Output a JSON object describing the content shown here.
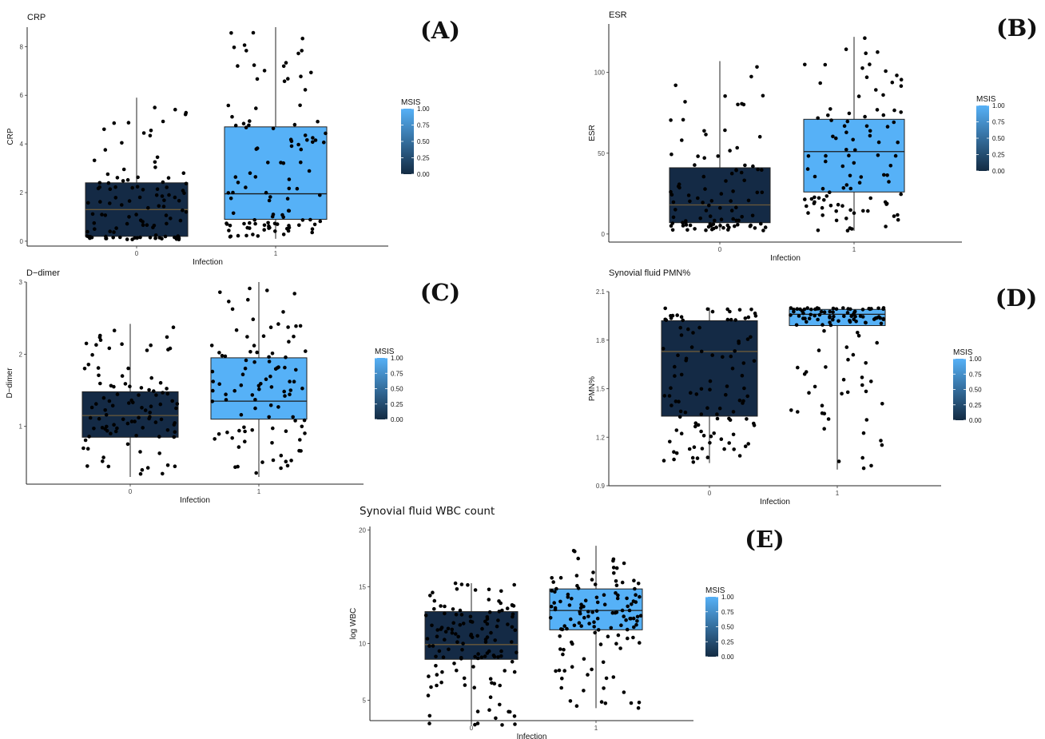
{
  "figure": {
    "legend_title": "MSIS",
    "legend_ticks": [
      "1.00",
      "0.75",
      "0.50",
      "0.25",
      "0.00"
    ],
    "colors": {
      "group0_fill": "#142a45",
      "group1_fill": "#56b1f7",
      "point": "#000000",
      "median0": "#6b5a3a",
      "median1": "#1a1a1a"
    }
  },
  "chart_data": [
    {
      "id": "A",
      "panel_label": "(A)",
      "type": "box",
      "title": "CRP",
      "ylabel": "CRP",
      "xlabel": "Infection",
      "categories": [
        "0",
        "1"
      ],
      "ylim": [
        -0.2,
        8.8
      ],
      "yticks": [
        0,
        2,
        4,
        6,
        8
      ],
      "boxes": [
        {
          "category": "0",
          "min": 0.05,
          "q1": 0.2,
          "median": 1.3,
          "q3": 2.4,
          "max": 5.9
        },
        {
          "category": "1",
          "min": 0.1,
          "q1": 0.9,
          "median": 1.95,
          "q3": 4.7,
          "max": 8.8
        }
      ],
      "points_per_group": 110
    },
    {
      "id": "B",
      "panel_label": "(B)",
      "type": "box",
      "title": "ESR",
      "ylabel": "ESR",
      "xlabel": "Infection",
      "categories": [
        "0",
        "1"
      ],
      "ylim": [
        -5,
        130
      ],
      "yticks": [
        0,
        50,
        100
      ],
      "boxes": [
        {
          "category": "0",
          "min": 2,
          "q1": 7,
          "median": 18,
          "q3": 41,
          "max": 107
        },
        {
          "category": "1",
          "min": 2,
          "q1": 26,
          "median": 51,
          "q3": 71,
          "max": 122
        }
      ],
      "points_per_group": 100
    },
    {
      "id": "C",
      "panel_label": "(C)",
      "type": "box",
      "title": "D−dimer",
      "ylabel": "D−dimer",
      "xlabel": "Infection",
      "categories": [
        "0",
        "1"
      ],
      "ylim": [
        0.2,
        3.0
      ],
      "yticks": [
        1,
        2,
        3
      ],
      "boxes": [
        {
          "category": "0",
          "min": 0.3,
          "q1": 0.85,
          "median": 1.15,
          "q3": 1.48,
          "max": 2.42
        },
        {
          "category": "1",
          "min": 0.3,
          "q1": 1.1,
          "median": 1.35,
          "q3": 1.95,
          "max": 3.0
        }
      ],
      "points_per_group": 100
    },
    {
      "id": "D",
      "panel_label": "(D)",
      "type": "box",
      "title": "Synovial fluid PMN%",
      "ylabel": "PMN%",
      "xlabel": "Infection",
      "categories": [
        "0",
        "1"
      ],
      "ylim": [
        0.9,
        2.1
      ],
      "yticks": [
        0.9,
        1.2,
        1.5,
        1.8,
        2.1
      ],
      "tick_labels": [
        "0.9",
        "1.2",
        "1.5",
        "1.8",
        "2.1"
      ],
      "boxes": [
        {
          "category": "0",
          "min": 1.04,
          "q1": 1.33,
          "median": 1.73,
          "q3": 1.92,
          "max": 2.0
        },
        {
          "category": "1",
          "min": 1.0,
          "q1": 1.89,
          "median": 1.96,
          "q3": 1.99,
          "max": 2.0
        }
      ],
      "points_per_group": 110
    },
    {
      "id": "E",
      "panel_label": "(E)",
      "type": "box",
      "title": "Synovial fluid WBC  count",
      "ylabel": "log WBC",
      "xlabel": "Infection",
      "categories": [
        "0",
        "1"
      ],
      "ylim": [
        3.2,
        20.3
      ],
      "yticks": [
        5,
        10,
        15,
        20
      ],
      "boxes": [
        {
          "category": "0",
          "min": 2.8,
          "q1": 8.6,
          "median": 9.9,
          "q3": 12.8,
          "max": 15.3
        },
        {
          "category": "1",
          "min": 4.3,
          "q1": 11.2,
          "median": 12.9,
          "q3": 14.8,
          "max": 18.6
        }
      ],
      "points_per_group": 130
    }
  ]
}
